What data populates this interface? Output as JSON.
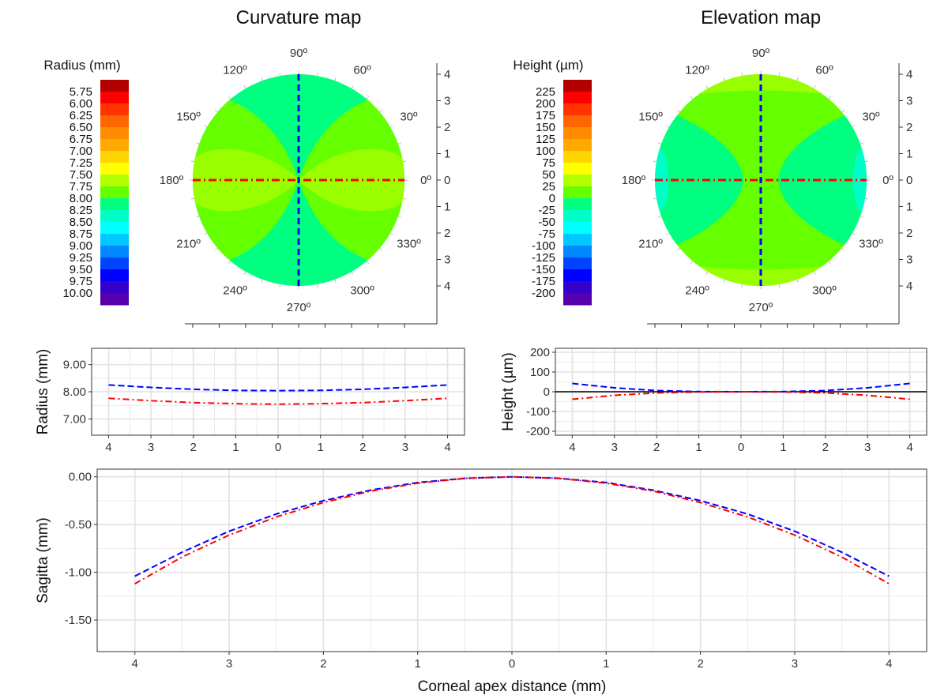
{
  "titles": {
    "curvature": "Curvature map",
    "elevation": "Elevation map"
  },
  "colors": {
    "horizontal_meridian": "#ff0000",
    "vertical_meridian": "#0000ff",
    "grid": "#ebebeb",
    "panel_border": "#333333"
  },
  "polar": {
    "angle_labels": [
      "0º",
      "30º",
      "60º",
      "90º",
      "120º",
      "150º",
      "180º",
      "210º",
      "240º",
      "270º",
      "300º",
      "330º"
    ],
    "radial_ticks": [
      "4",
      "3",
      "2",
      "1",
      "0",
      "1",
      "2",
      "3",
      "4"
    ],
    "radius_extent_mm": 4
  },
  "legends": {
    "curvature": {
      "title": "Radius (mm)",
      "labels": [
        "5.75",
        "6.00",
        "6.25",
        "6.50",
        "6.75",
        "7.00",
        "7.25",
        "7.50",
        "7.75",
        "8.00",
        "8.25",
        "8.50",
        "8.75",
        "9.00",
        "9.25",
        "9.50",
        "9.75",
        "10.00"
      ],
      "colors": [
        "#b00000",
        "#ff0000",
        "#ff3300",
        "#ff6600",
        "#ff8c00",
        "#ffaa00",
        "#ffd500",
        "#ffff00",
        "#b3ff00",
        "#66ff00",
        "#00ff80",
        "#00ffc8",
        "#00ffff",
        "#00c8ff",
        "#0088ff",
        "#0044ff",
        "#0000ff",
        "#3300cc",
        "#5500aa"
      ]
    },
    "elevation": {
      "title": "Height (µm)",
      "labels": [
        "225",
        "200",
        "175",
        "150",
        "125",
        "100",
        "75",
        "50",
        "25",
        "0",
        "-25",
        "-50",
        "-75",
        "-100",
        "-125",
        "-150",
        "-175",
        "-200"
      ],
      "colors": [
        "#b00000",
        "#ff0000",
        "#ff3300",
        "#ff6600",
        "#ff8c00",
        "#ffaa00",
        "#ffd500",
        "#ffff00",
        "#b3ff00",
        "#66ff00",
        "#00ff80",
        "#00ffc8",
        "#00ffff",
        "#00c8ff",
        "#0088ff",
        "#0044ff",
        "#0000ff",
        "#3300cc",
        "#5500aa"
      ]
    }
  },
  "maps": {
    "curvature": {
      "base_color": "#00ff80",
      "horizontal_lobe_color": "#66ff00",
      "inner_lobe_color": "#99ff00",
      "horizontal_lobe_value": 7.75,
      "base_value": 8.0
    },
    "elevation": {
      "base_color": "#66ff00",
      "vertical_cap_color": "#99ff00",
      "side_lobe_color": "#00ff80",
      "edge_color": "#00ffc8"
    }
  },
  "chart_data": [
    {
      "type": "line",
      "panel": "radius-profile",
      "ylabel": "Radius (mm)",
      "xlabel": "",
      "x_tick_labels": [
        "4",
        "3",
        "2",
        "1",
        "0",
        "1",
        "2",
        "3",
        "4"
      ],
      "y_tick_labels": [
        "9.00",
        "8.00",
        "7.00"
      ],
      "ylim": [
        6.4,
        9.6
      ],
      "x": [
        -4,
        -3,
        -2,
        -1,
        0,
        1,
        2,
        3,
        4
      ],
      "series": [
        {
          "style": "dashed",
          "color": "#0000ff",
          "values": [
            8.25,
            8.16,
            8.09,
            8.05,
            8.04,
            8.05,
            8.09,
            8.16,
            8.25
          ]
        },
        {
          "style": "dotdash",
          "color": "#ff0000",
          "values": [
            7.76,
            7.67,
            7.6,
            7.56,
            7.54,
            7.56,
            7.6,
            7.67,
            7.76
          ]
        }
      ]
    },
    {
      "type": "line",
      "panel": "height-profile",
      "ylabel": "Height (µm)",
      "xlabel": "",
      "x_tick_labels": [
        "4",
        "3",
        "2",
        "1",
        "0",
        "1",
        "2",
        "3",
        "4"
      ],
      "y_tick_labels": [
        "200",
        "100",
        "0",
        "-100",
        "-200"
      ],
      "ylim": [
        -220,
        220
      ],
      "x": [
        -4,
        -3,
        -2,
        -1,
        0,
        1,
        2,
        3,
        4
      ],
      "series": [
        {
          "style": "dashed",
          "color": "#0000ff",
          "values": [
            42,
            20,
            6,
            1,
            0,
            1,
            6,
            20,
            42
          ]
        },
        {
          "style": "dotdash",
          "color": "#ff0000",
          "values": [
            -38,
            -18,
            -6,
            -1,
            0,
            -1,
            -6,
            -18,
            -38
          ]
        }
      ]
    },
    {
      "type": "line",
      "panel": "sagitta-profile",
      "ylabel": "Sagitta (mm)",
      "xlabel": "Corneal apex distance (mm)",
      "x_tick_labels": [
        "4",
        "3",
        "2",
        "1",
        "0",
        "1",
        "2",
        "3",
        "4"
      ],
      "y_tick_labels": [
        "0.00",
        "-0.50",
        "-1.00",
        "-1.50"
      ],
      "ylim": [
        -1.83,
        0.08
      ],
      "x": [
        -4,
        -3.5,
        -3,
        -2.5,
        -2,
        -1.5,
        -1,
        -0.5,
        0,
        0.5,
        1,
        1.5,
        2,
        2.5,
        3,
        3.5,
        4
      ],
      "series": [
        {
          "style": "dashed",
          "color": "#0000ff",
          "values": [
            -1.04,
            -0.79,
            -0.57,
            -0.39,
            -0.25,
            -0.14,
            -0.06,
            -0.016,
            0,
            -0.016,
            -0.06,
            -0.14,
            -0.25,
            -0.39,
            -0.57,
            -0.79,
            -1.04
          ]
        },
        {
          "style": "dotdash",
          "color": "#ff0000",
          "values": [
            -1.12,
            -0.84,
            -0.61,
            -0.42,
            -0.27,
            -0.15,
            -0.067,
            -0.017,
            0,
            -0.017,
            -0.067,
            -0.15,
            -0.27,
            -0.42,
            -0.61,
            -0.84,
            -1.12
          ]
        }
      ]
    }
  ]
}
